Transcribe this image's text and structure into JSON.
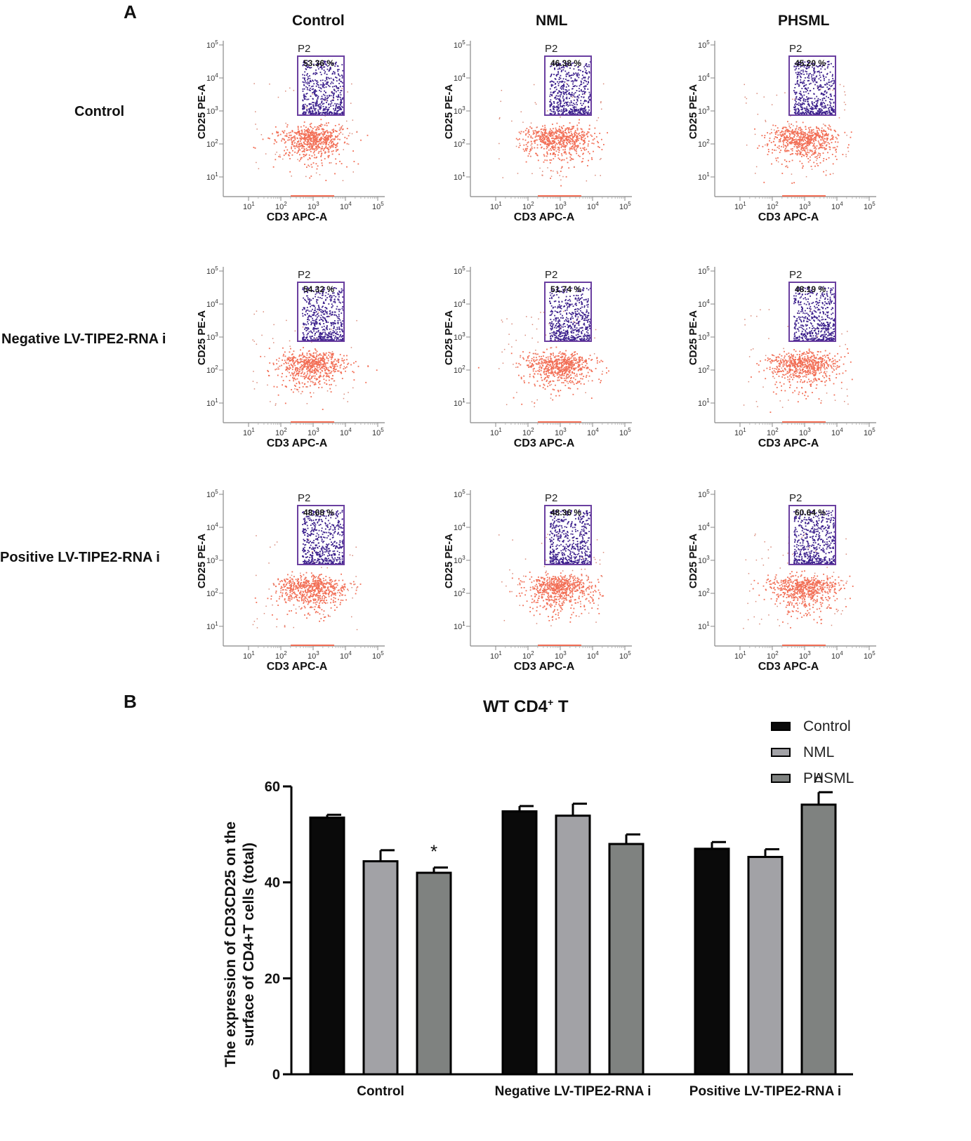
{
  "panel_a": {
    "label": "A",
    "columns": [
      "Control",
      "NML",
      "PHSML"
    ],
    "rows": [
      "Control",
      "Negative LV-TIPE2-RNA i",
      "Positive LV-TIPE2-RNA i"
    ],
    "gate_name": "P2",
    "x_axis_label": "CD3 APC-A",
    "y_axis_label": "CD25 PE-A",
    "tick_exponent_base": "10",
    "x_tick_exponents": [
      "1",
      "2",
      "3",
      "4",
      "5"
    ],
    "y_tick_exponents": [
      "1",
      "2",
      "3",
      "4",
      "5"
    ],
    "gate_percentages": [
      [
        "53.36 %",
        "46.38 %",
        "45.20 %"
      ],
      [
        "54.32 %",
        "51.74 %",
        "48.19 %"
      ],
      [
        "48.68 %",
        "48.36 %",
        "60.64 %"
      ]
    ],
    "colors": {
      "gated": "#3b1f8c",
      "ungated": "#f26e55",
      "gate_box": "#6a3fa0"
    }
  },
  "panel_b": {
    "label": "B"
  },
  "chart_data": {
    "type": "bar",
    "title": "WT CD4",
    "title_superscript": "+",
    "title_suffix": " T",
    "categories": [
      "Control",
      "Negative LV-TIPE2-RNA i",
      "Positive LV-TIPE2-RNA i"
    ],
    "series": [
      {
        "name": "Control",
        "color": "#0a0a0a",
        "values": [
          53.5,
          54.8,
          47.0
        ],
        "errors": [
          0.6,
          1.1,
          1.4
        ]
      },
      {
        "name": "NML",
        "color": "#a2a2a6",
        "values": [
          44.4,
          53.9,
          45.3
        ],
        "errors": [
          2.3,
          2.5,
          1.6
        ]
      },
      {
        "name": "PHSML",
        "color": "#7f8280",
        "values": [
          42.0,
          48.0,
          56.2
        ],
        "errors": [
          1.1,
          2.0,
          2.6
        ]
      }
    ],
    "annotations": [
      {
        "category": "Control",
        "series": "PHSML",
        "text": "*"
      },
      {
        "category": "Positive LV-TIPE2-RNA i",
        "series": "PHSML",
        "text": "Δ"
      }
    ],
    "ylabel_line1": "The expression of CD3CD25 on the",
    "ylabel_line2": "surface of CD4+T cells (total)",
    "xlabel": "",
    "ylim": [
      0,
      60
    ],
    "yticks": [
      0,
      20,
      40,
      60
    ],
    "legend": [
      "Control",
      "NML",
      "PHSML"
    ],
    "legend_position": "top-right",
    "grid": false
  }
}
